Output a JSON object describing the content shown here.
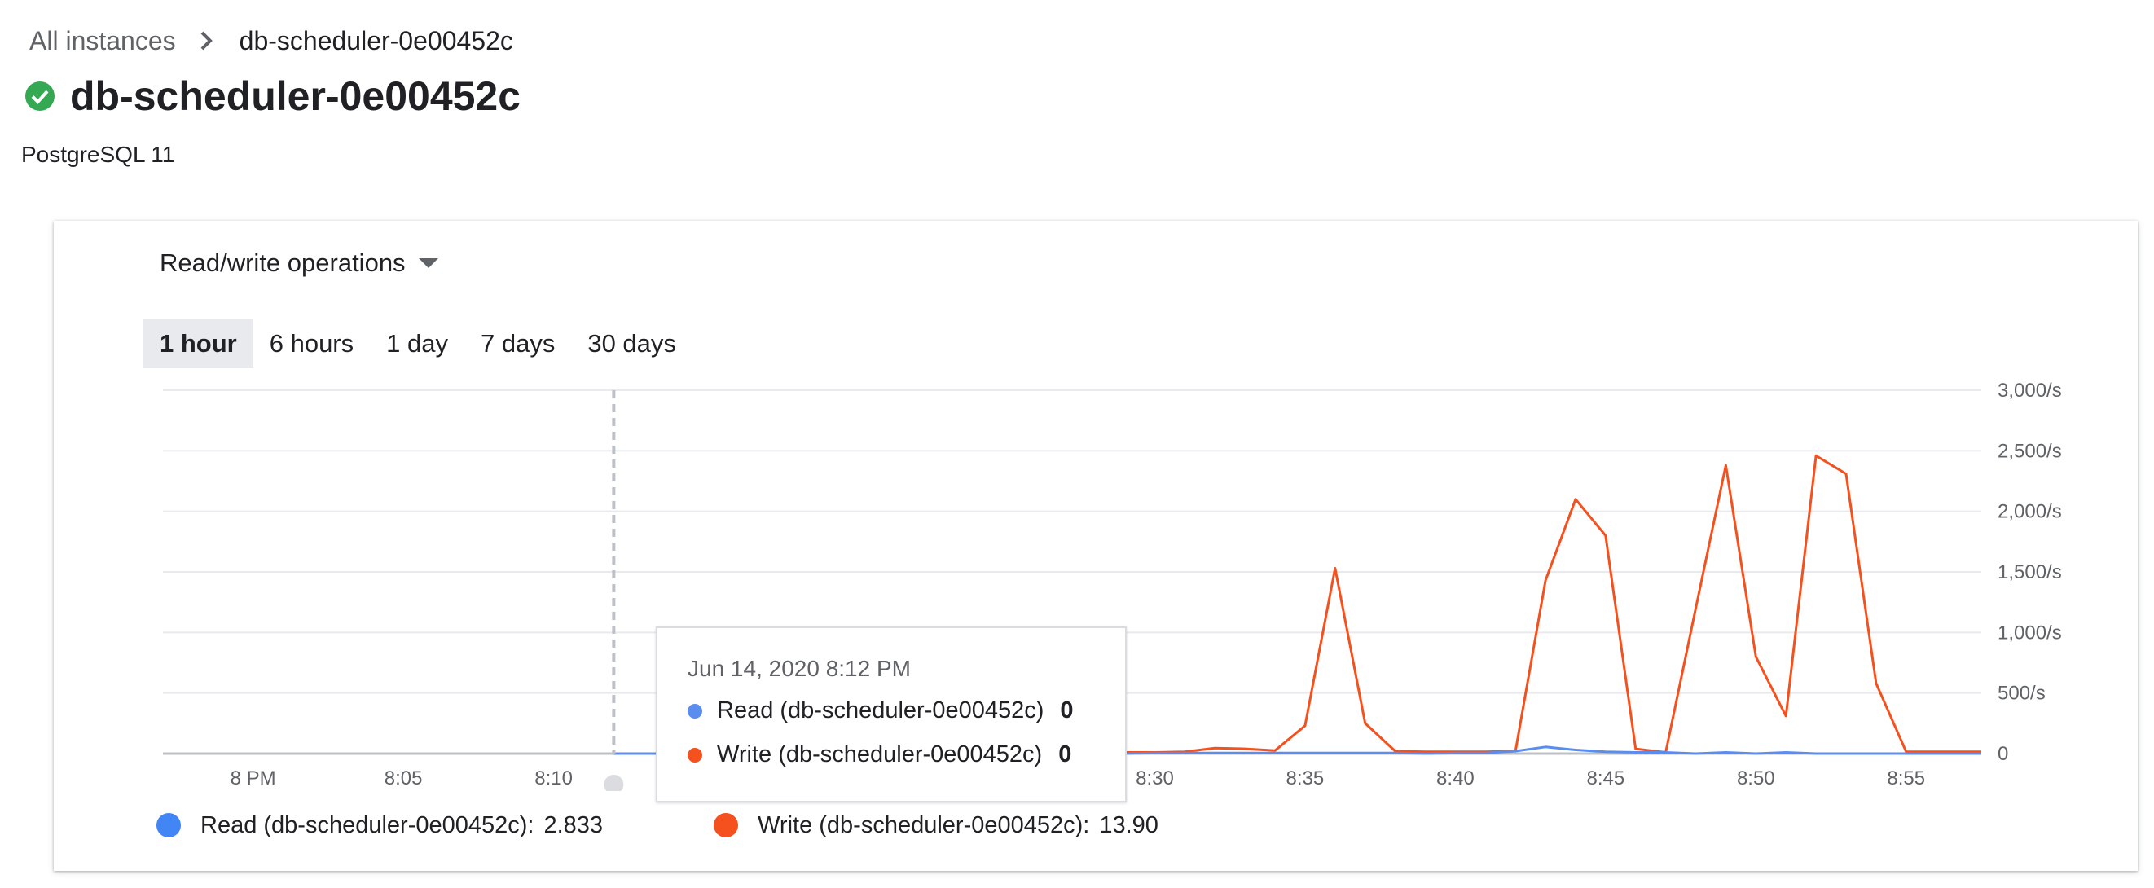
{
  "breadcrumb": {
    "root": "All instances",
    "current": "db-scheduler-0e00452c"
  },
  "instance": {
    "name": "db-scheduler-0e00452c",
    "version": "PostgreSQL 11",
    "status_icon": "check-circle-icon",
    "status_color": "#34a853"
  },
  "metric_selector": {
    "label": "Read/write operations"
  },
  "time_ranges": [
    "1 hour",
    "6 hours",
    "1 day",
    "7 days",
    "30 days"
  ],
  "selected_range": "1 hour",
  "chart_data": {
    "type": "line",
    "x_ticks": [
      "8 PM",
      "8:05",
      "8:10",
      "8:15",
      "8:20",
      "8:25",
      "8:30",
      "8:35",
      "8:40",
      "8:45",
      "8:50",
      "8:55"
    ],
    "y_ticks": [
      "0",
      "500/s",
      "1,000/s",
      "1,500/s",
      "2,000/s",
      "2,500/s",
      "3,000/s"
    ],
    "ylim": [
      0,
      3000
    ],
    "xlim_minutes": [
      -3,
      57.5
    ],
    "grid": true,
    "hover_minute": 12,
    "series": [
      {
        "name": "Write (db-scheduler-0e00452c)",
        "color": "#f4511e",
        "points": [
          [
            12,
            0
          ],
          [
            13,
            0
          ],
          [
            14,
            0
          ],
          [
            15,
            0
          ],
          [
            16,
            0
          ],
          [
            17,
            0
          ],
          [
            18,
            0
          ],
          [
            19,
            0
          ],
          [
            20,
            0
          ],
          [
            21,
            0
          ],
          [
            22,
            0
          ],
          [
            23,
            0
          ],
          [
            24,
            0
          ],
          [
            25,
            0
          ],
          [
            26,
            0
          ],
          [
            27,
            0
          ],
          [
            28,
            0
          ],
          [
            29,
            10
          ],
          [
            30,
            10
          ],
          [
            31,
            15
          ],
          [
            32,
            45
          ],
          [
            33,
            40
          ],
          [
            34,
            25
          ],
          [
            35,
            230
          ],
          [
            36,
            1530
          ],
          [
            37,
            250
          ],
          [
            38,
            20
          ],
          [
            39,
            15
          ],
          [
            40,
            15
          ],
          [
            41,
            15
          ],
          [
            42,
            20
          ],
          [
            43,
            1430
          ],
          [
            44,
            2100
          ],
          [
            45,
            1800
          ],
          [
            46,
            40
          ],
          [
            47,
            10
          ],
          [
            48,
            1200
          ],
          [
            49,
            2380
          ],
          [
            50,
            800
          ],
          [
            51,
            310
          ],
          [
            52,
            2460
          ],
          [
            53,
            2310
          ],
          [
            54,
            580
          ],
          [
            55,
            15
          ],
          [
            56,
            15
          ],
          [
            57.5,
            15
          ]
        ]
      },
      {
        "name": "Read (db-scheduler-0e00452c)",
        "color": "#5b8def",
        "points": [
          [
            12,
            0
          ],
          [
            13,
            0
          ],
          [
            14,
            0
          ],
          [
            15,
            0
          ],
          [
            16,
            0
          ],
          [
            17,
            0
          ],
          [
            18,
            0
          ],
          [
            19,
            0
          ],
          [
            20,
            0
          ],
          [
            21,
            0
          ],
          [
            22,
            0
          ],
          [
            23,
            0
          ],
          [
            24,
            0
          ],
          [
            25,
            0
          ],
          [
            26,
            0
          ],
          [
            27,
            0
          ],
          [
            28,
            0
          ],
          [
            29,
            0
          ],
          [
            30,
            5
          ],
          [
            31,
            5
          ],
          [
            32,
            5
          ],
          [
            33,
            5
          ],
          [
            34,
            5
          ],
          [
            35,
            5
          ],
          [
            36,
            5
          ],
          [
            37,
            5
          ],
          [
            38,
            5
          ],
          [
            39,
            0
          ],
          [
            40,
            5
          ],
          [
            41,
            5
          ],
          [
            42,
            20
          ],
          [
            43,
            55
          ],
          [
            44,
            30
          ],
          [
            45,
            15
          ],
          [
            46,
            10
          ],
          [
            47,
            10
          ],
          [
            48,
            0
          ],
          [
            49,
            10
          ],
          [
            50,
            0
          ],
          [
            51,
            10
          ],
          [
            52,
            0
          ],
          [
            53,
            0
          ],
          [
            54,
            0
          ],
          [
            55,
            0
          ],
          [
            56,
            0
          ],
          [
            57.5,
            0
          ]
        ]
      }
    ]
  },
  "tooltip": {
    "date": "Jun 14, 2020 8:12 PM",
    "rows": [
      {
        "label": "Read (db-scheduler-0e00452c)",
        "value": "0",
        "color": "#5b8def"
      },
      {
        "label": "Write (db-scheduler-0e00452c)",
        "value": "0",
        "color": "#f4511e"
      }
    ]
  },
  "legend": [
    {
      "label": "Read (db-scheduler-0e00452c):",
      "value": "2.833",
      "color": "#4285f4"
    },
    {
      "label": "Write (db-scheduler-0e00452c):",
      "value": "13.90",
      "color": "#f4511e"
    }
  ]
}
